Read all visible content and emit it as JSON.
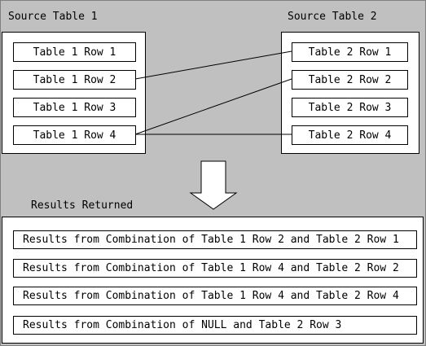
{
  "source_table_1": {
    "title": "Source Table 1",
    "rows": [
      "Table 1 Row 1",
      "Table 1 Row 2",
      "Table 1 Row 3",
      "Table 1 Row 4"
    ]
  },
  "source_table_2": {
    "title": "Source Table 2",
    "rows": [
      "Table 2 Row 1",
      "Table 2 Row 2",
      "Table 2 Row 3",
      "Table 2 Row 4"
    ]
  },
  "join_links": [
    {
      "from": "Table 1 Row 2",
      "to": "Table 2 Row 1"
    },
    {
      "from": "Table 1 Row 4",
      "to": "Table 2 Row 2"
    },
    {
      "from": "Table 1 Row 4",
      "to": "Table 2 Row 4"
    }
  ],
  "results": {
    "title": "Results Returned",
    "rows": [
      "Results from Combination of Table 1 Row 2 and Table 2 Row 1",
      "Results from Combination of Table 1 Row 4 and Table 2 Row 2",
      "Results from Combination of Table 1 Row 4 and Table 2 Row 4",
      "Results from Combination of NULL and Table 2 Row 3"
    ]
  },
  "colors": {
    "background": "#c0c0c0",
    "panel": "#ffffff",
    "stroke": "#000000"
  },
  "icons": {
    "flow_arrow": "down-arrow-icon"
  }
}
